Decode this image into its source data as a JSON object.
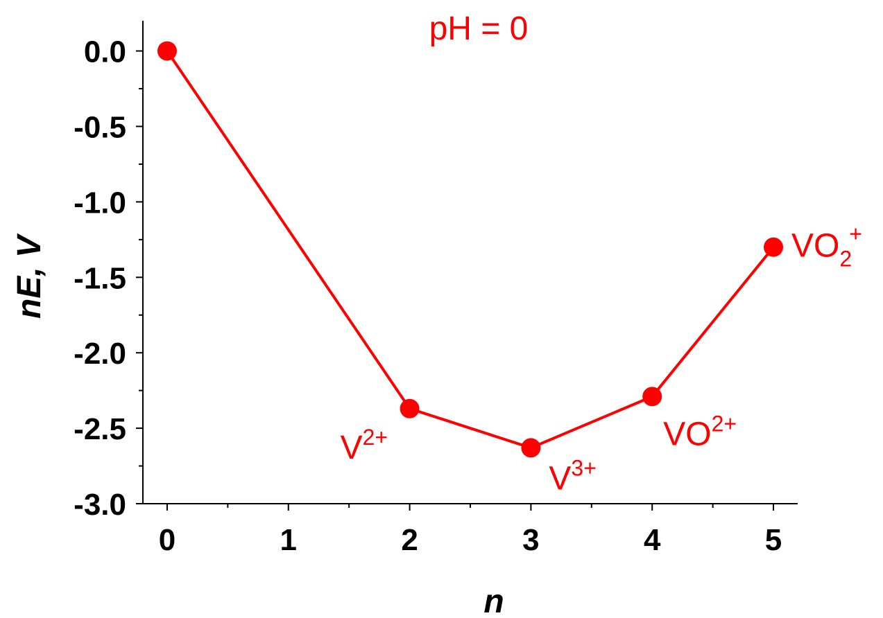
{
  "chart_data": {
    "type": "line",
    "title": "pH = 0",
    "xlabel": "n",
    "ylabel": "nE, V",
    "xlim": [
      -0.2,
      5.2
    ],
    "ylim": [
      -3.0,
      0.2
    ],
    "x_ticks": [
      0,
      1,
      2,
      3,
      4,
      5
    ],
    "x_tick_labels": [
      "0",
      "1",
      "2",
      "3",
      "4",
      "5"
    ],
    "y_ticks": [
      0.0,
      -0.5,
      -1.0,
      -1.5,
      -2.0,
      -2.5,
      -3.0
    ],
    "y_tick_labels": [
      "0.0",
      "-0.5",
      "-1.0",
      "-1.5",
      "-2.0",
      "-2.5",
      "-3.0"
    ],
    "grid": false,
    "color": "#ff0000",
    "series": [
      {
        "x": [
          0,
          2,
          3,
          4,
          5
        ],
        "y": [
          0.0,
          -2.37,
          -2.63,
          -2.29,
          -1.3
        ]
      }
    ],
    "annotations": [
      {
        "x": 2,
        "y": -2.37,
        "base": "V",
        "sub": "",
        "sup": "2+"
      },
      {
        "x": 3,
        "y": -2.63,
        "base": "V",
        "sub": "",
        "sup": "3+"
      },
      {
        "x": 4,
        "y": -2.29,
        "base": "VO",
        "sub": "",
        "sup": "2+"
      },
      {
        "x": 5,
        "y": -1.3,
        "base": "VO",
        "sub": "2",
        "sup": "+"
      }
    ]
  }
}
